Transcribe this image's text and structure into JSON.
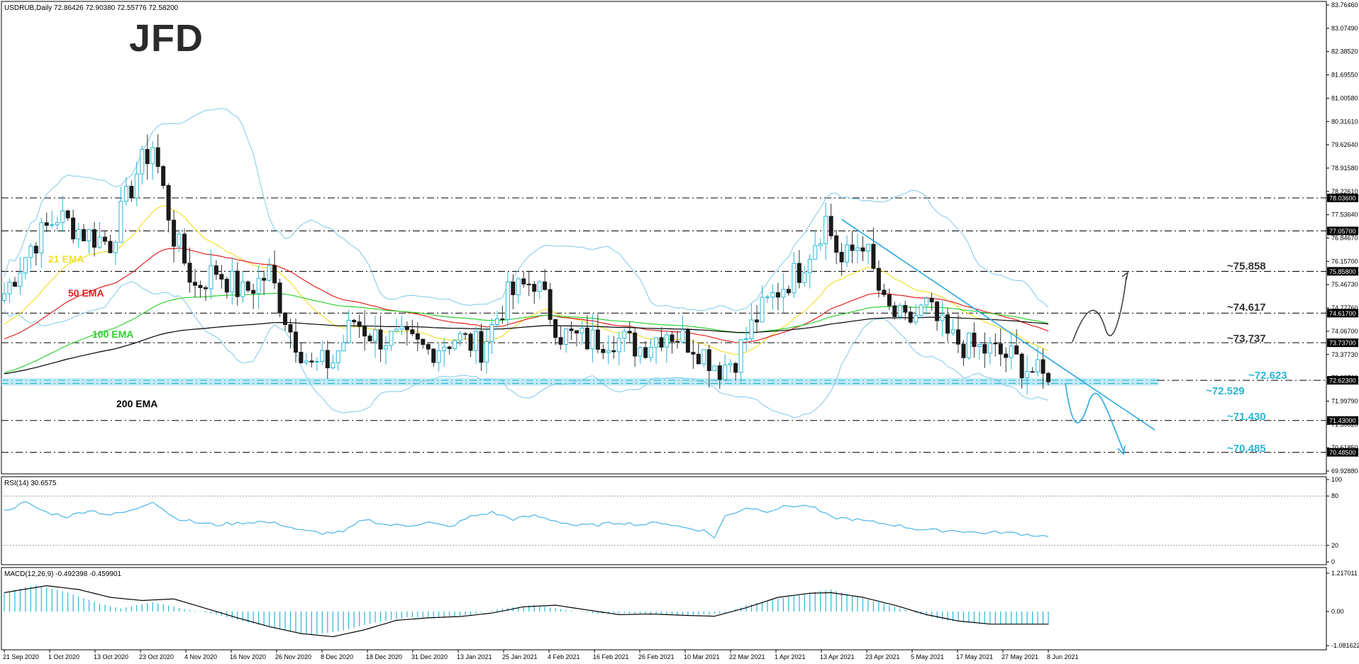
{
  "chart_data": [
    {
      "type": "line",
      "title": "USDRUB,Daily  72.86426 72.90380 72.55776 72.58200",
      "y_ticks": [
        "83.76460",
        "83.07490",
        "82.38520",
        "81.69550",
        "81.00580",
        "80.31610",
        "79.62640",
        "78.91580",
        "78.22610",
        "77.53640",
        "76.84670",
        "76.15700",
        "75.46730",
        "74.77760",
        "74.06700",
        "73.37730",
        "72.68760",
        "71.99790",
        "71.30820",
        "70.61850",
        "69.92880"
      ],
      "ylim": [
        69.9288,
        83.7646
      ],
      "x_ticks": [
        "21 Sep 2020",
        "1 Oct 2020",
        "13 Oct 2020",
        "23 Oct 2020",
        "4 Nov 2020",
        "16 Nov 2020",
        "26 Nov 2020",
        "8 Dec 2020",
        "18 Dec 2020",
        "31 Dec 2020",
        "13 Jan 2021",
        "25 Jan 2021",
        "4 Feb 2021",
        "16 Feb 2021",
        "26 Feb 2021",
        "10 Mar 2021",
        "22 Mar 2021",
        "1 Apr 2021",
        "13 Apr 2021",
        "23 Apr 2021",
        "5 May 2021",
        "17 May 2021",
        "27 May 2021",
        "8 Jun 2021"
      ],
      "horizontal_levels": [
        {
          "price": 78.036,
          "axis_label": "78.03600"
        },
        {
          "price": 77.057,
          "axis_label": "77.05700"
        },
        {
          "price": 75.858,
          "axis_label": "75.85800",
          "annotation": "~75.858"
        },
        {
          "price": 74.617,
          "axis_label": "74.61700",
          "annotation": "~74.617"
        },
        {
          "price": 73.737,
          "axis_label": "73.73700",
          "annotation": "~73.737"
        },
        {
          "price": 72.623,
          "axis_label": "72.62300",
          "annotation": "~72.623"
        },
        {
          "price": 72.529,
          "axis_label": "72.52900",
          "annotation": "~72.529"
        },
        {
          "price": 71.43,
          "axis_label": "71.43000",
          "annotation": "~71.430"
        },
        {
          "price": 70.485,
          "axis_label": "70.48500",
          "annotation": "~70.485"
        }
      ],
      "series": [
        {
          "name": "21 EMA",
          "color": "#f0e030"
        },
        {
          "name": "50 EMA",
          "color": "#e02020"
        },
        {
          "name": "100 EMA",
          "color": "#30d030"
        },
        {
          "name": "200 EMA",
          "color": "#000000"
        }
      ],
      "close_trend": [
        [
          0,
          75.2
        ],
        [
          5,
          76.6
        ],
        [
          10,
          77.5
        ],
        [
          15,
          77.0
        ],
        [
          20,
          76.7
        ],
        [
          25,
          78.8
        ],
        [
          28,
          79.6
        ],
        [
          32,
          76.9
        ],
        [
          36,
          75.4
        ],
        [
          40,
          75.9
        ],
        [
          45,
          75.2
        ],
        [
          50,
          75.8
        ],
        [
          54,
          74.1
        ],
        [
          58,
          73.0
        ],
        [
          62,
          73.2
        ],
        [
          66,
          74.4
        ],
        [
          70,
          73.9
        ],
        [
          75,
          73.8
        ],
        [
          80,
          73.5
        ],
        [
          85,
          73.9
        ],
        [
          90,
          73.6
        ],
        [
          95,
          75.1
        ],
        [
          100,
          75.6
        ],
        [
          105,
          74.0
        ],
        [
          110,
          73.8
        ],
        [
          115,
          73.9
        ],
        [
          120,
          73.6
        ],
        [
          125,
          74.1
        ],
        [
          130,
          73.7
        ],
        [
          135,
          73.0
        ],
        [
          138,
          73.3
        ],
        [
          142,
          74.5
        ],
        [
          146,
          75.3
        ],
        [
          150,
          75.9
        ],
        [
          155,
          77.4
        ],
        [
          158,
          76.1
        ],
        [
          162,
          76.8
        ],
        [
          166,
          74.8
        ],
        [
          170,
          74.3
        ],
        [
          174,
          74.8
        ],
        [
          178,
          73.9
        ],
        [
          182,
          73.6
        ],
        [
          186,
          73.5
        ],
        [
          190,
          73.3
        ],
        [
          194,
          72.9
        ],
        [
          197,
          72.58
        ]
      ],
      "rsi": {
        "label": "RSI(14) 30.6575",
        "levels": [
          80,
          20
        ],
        "axis_ticks": [
          "100",
          "80",
          "20",
          "0"
        ],
        "values": [
          [
            0,
            62
          ],
          [
            4,
            72
          ],
          [
            8,
            60
          ],
          [
            12,
            55
          ],
          [
            16,
            63
          ],
          [
            20,
            57
          ],
          [
            24,
            62
          ],
          [
            28,
            74
          ],
          [
            32,
            54
          ],
          [
            36,
            48
          ],
          [
            40,
            45
          ],
          [
            44,
            47
          ],
          [
            48,
            49
          ],
          [
            52,
            46
          ],
          [
            56,
            38
          ],
          [
            60,
            35
          ],
          [
            64,
            36
          ],
          [
            68,
            52
          ],
          [
            72,
            45
          ],
          [
            76,
            44
          ],
          [
            80,
            48
          ],
          [
            84,
            42
          ],
          [
            88,
            55
          ],
          [
            92,
            60
          ],
          [
            96,
            52
          ],
          [
            100,
            56
          ],
          [
            104,
            50
          ],
          [
            108,
            44
          ],
          [
            112,
            45
          ],
          [
            116,
            48
          ],
          [
            120,
            45
          ],
          [
            124,
            48
          ],
          [
            128,
            42
          ],
          [
            132,
            38
          ],
          [
            134,
            30
          ],
          [
            136,
            55
          ],
          [
            140,
            66
          ],
          [
            144,
            62
          ],
          [
            148,
            68
          ],
          [
            152,
            68
          ],
          [
            156,
            54
          ],
          [
            160,
            52
          ],
          [
            164,
            48
          ],
          [
            168,
            45
          ],
          [
            172,
            40
          ],
          [
            176,
            38
          ],
          [
            180,
            38
          ],
          [
            184,
            35
          ],
          [
            188,
            36
          ],
          [
            192,
            34
          ],
          [
            197,
            30.66
          ]
        ]
      },
      "macd": {
        "label": "MACD(12,26,9) -0.492398 -0.459901",
        "axis_ticks": [
          "1.217011",
          "0.00",
          "-1.081622"
        ],
        "ylim": [
          -1.081622,
          1.217011
        ],
        "histogram": [
          [
            0,
            0.6
          ],
          [
            6,
            0.85
          ],
          [
            12,
            0.6
          ],
          [
            18,
            0.25
          ],
          [
            22,
            0.1
          ],
          [
            28,
            0.3
          ],
          [
            34,
            0.08
          ],
          [
            40,
            -0.1
          ],
          [
            46,
            -0.35
          ],
          [
            52,
            -0.55
          ],
          [
            58,
            -0.75
          ],
          [
            64,
            -0.6
          ],
          [
            70,
            -0.35
          ],
          [
            76,
            -0.18
          ],
          [
            82,
            -0.2
          ],
          [
            88,
            -0.1
          ],
          [
            94,
            0.1
          ],
          [
            100,
            0.2
          ],
          [
            106,
            0.05
          ],
          [
            112,
            -0.08
          ],
          [
            118,
            -0.05
          ],
          [
            124,
            -0.1
          ],
          [
            130,
            -0.12
          ],
          [
            136,
            -0.05
          ],
          [
            140,
            0.2
          ],
          [
            146,
            0.4
          ],
          [
            152,
            0.6
          ],
          [
            156,
            0.7
          ],
          [
            160,
            0.5
          ],
          [
            166,
            0.25
          ],
          [
            172,
            -0.05
          ],
          [
            178,
            -0.3
          ],
          [
            184,
            -0.38
          ],
          [
            190,
            -0.4
          ],
          [
            197,
            -0.42
          ]
        ],
        "signal": [
          [
            0,
            0.6
          ],
          [
            8,
            0.82
          ],
          [
            14,
            0.7
          ],
          [
            20,
            0.45
          ],
          [
            26,
            0.35
          ],
          [
            32,
            0.4
          ],
          [
            38,
            0.1
          ],
          [
            44,
            -0.2
          ],
          [
            50,
            -0.48
          ],
          [
            56,
            -0.7
          ],
          [
            62,
            -0.8
          ],
          [
            68,
            -0.58
          ],
          [
            74,
            -0.28
          ],
          [
            80,
            -0.2
          ],
          [
            86,
            -0.16
          ],
          [
            92,
            -0.05
          ],
          [
            98,
            0.15
          ],
          [
            104,
            0.2
          ],
          [
            110,
            0.05
          ],
          [
            116,
            -0.1
          ],
          [
            122,
            -0.08
          ],
          [
            128,
            -0.12
          ],
          [
            134,
            -0.15
          ],
          [
            140,
            0.12
          ],
          [
            146,
            0.45
          ],
          [
            152,
            0.58
          ],
          [
            156,
            0.6
          ],
          [
            162,
            0.45
          ],
          [
            168,
            0.2
          ],
          [
            174,
            -0.1
          ],
          [
            180,
            -0.3
          ],
          [
            186,
            -0.4
          ],
          [
            192,
            -0.4
          ],
          [
            197,
            -0.4
          ]
        ]
      }
    }
  ],
  "logo": "JFD",
  "colors": {
    "candle_up": "#29b6d6",
    "candle_down": "#1a1a1a",
    "bollinger": "#7fc8e8",
    "trendline": "#29a8e0",
    "support": "#29b6d6",
    "level": "#000000"
  }
}
